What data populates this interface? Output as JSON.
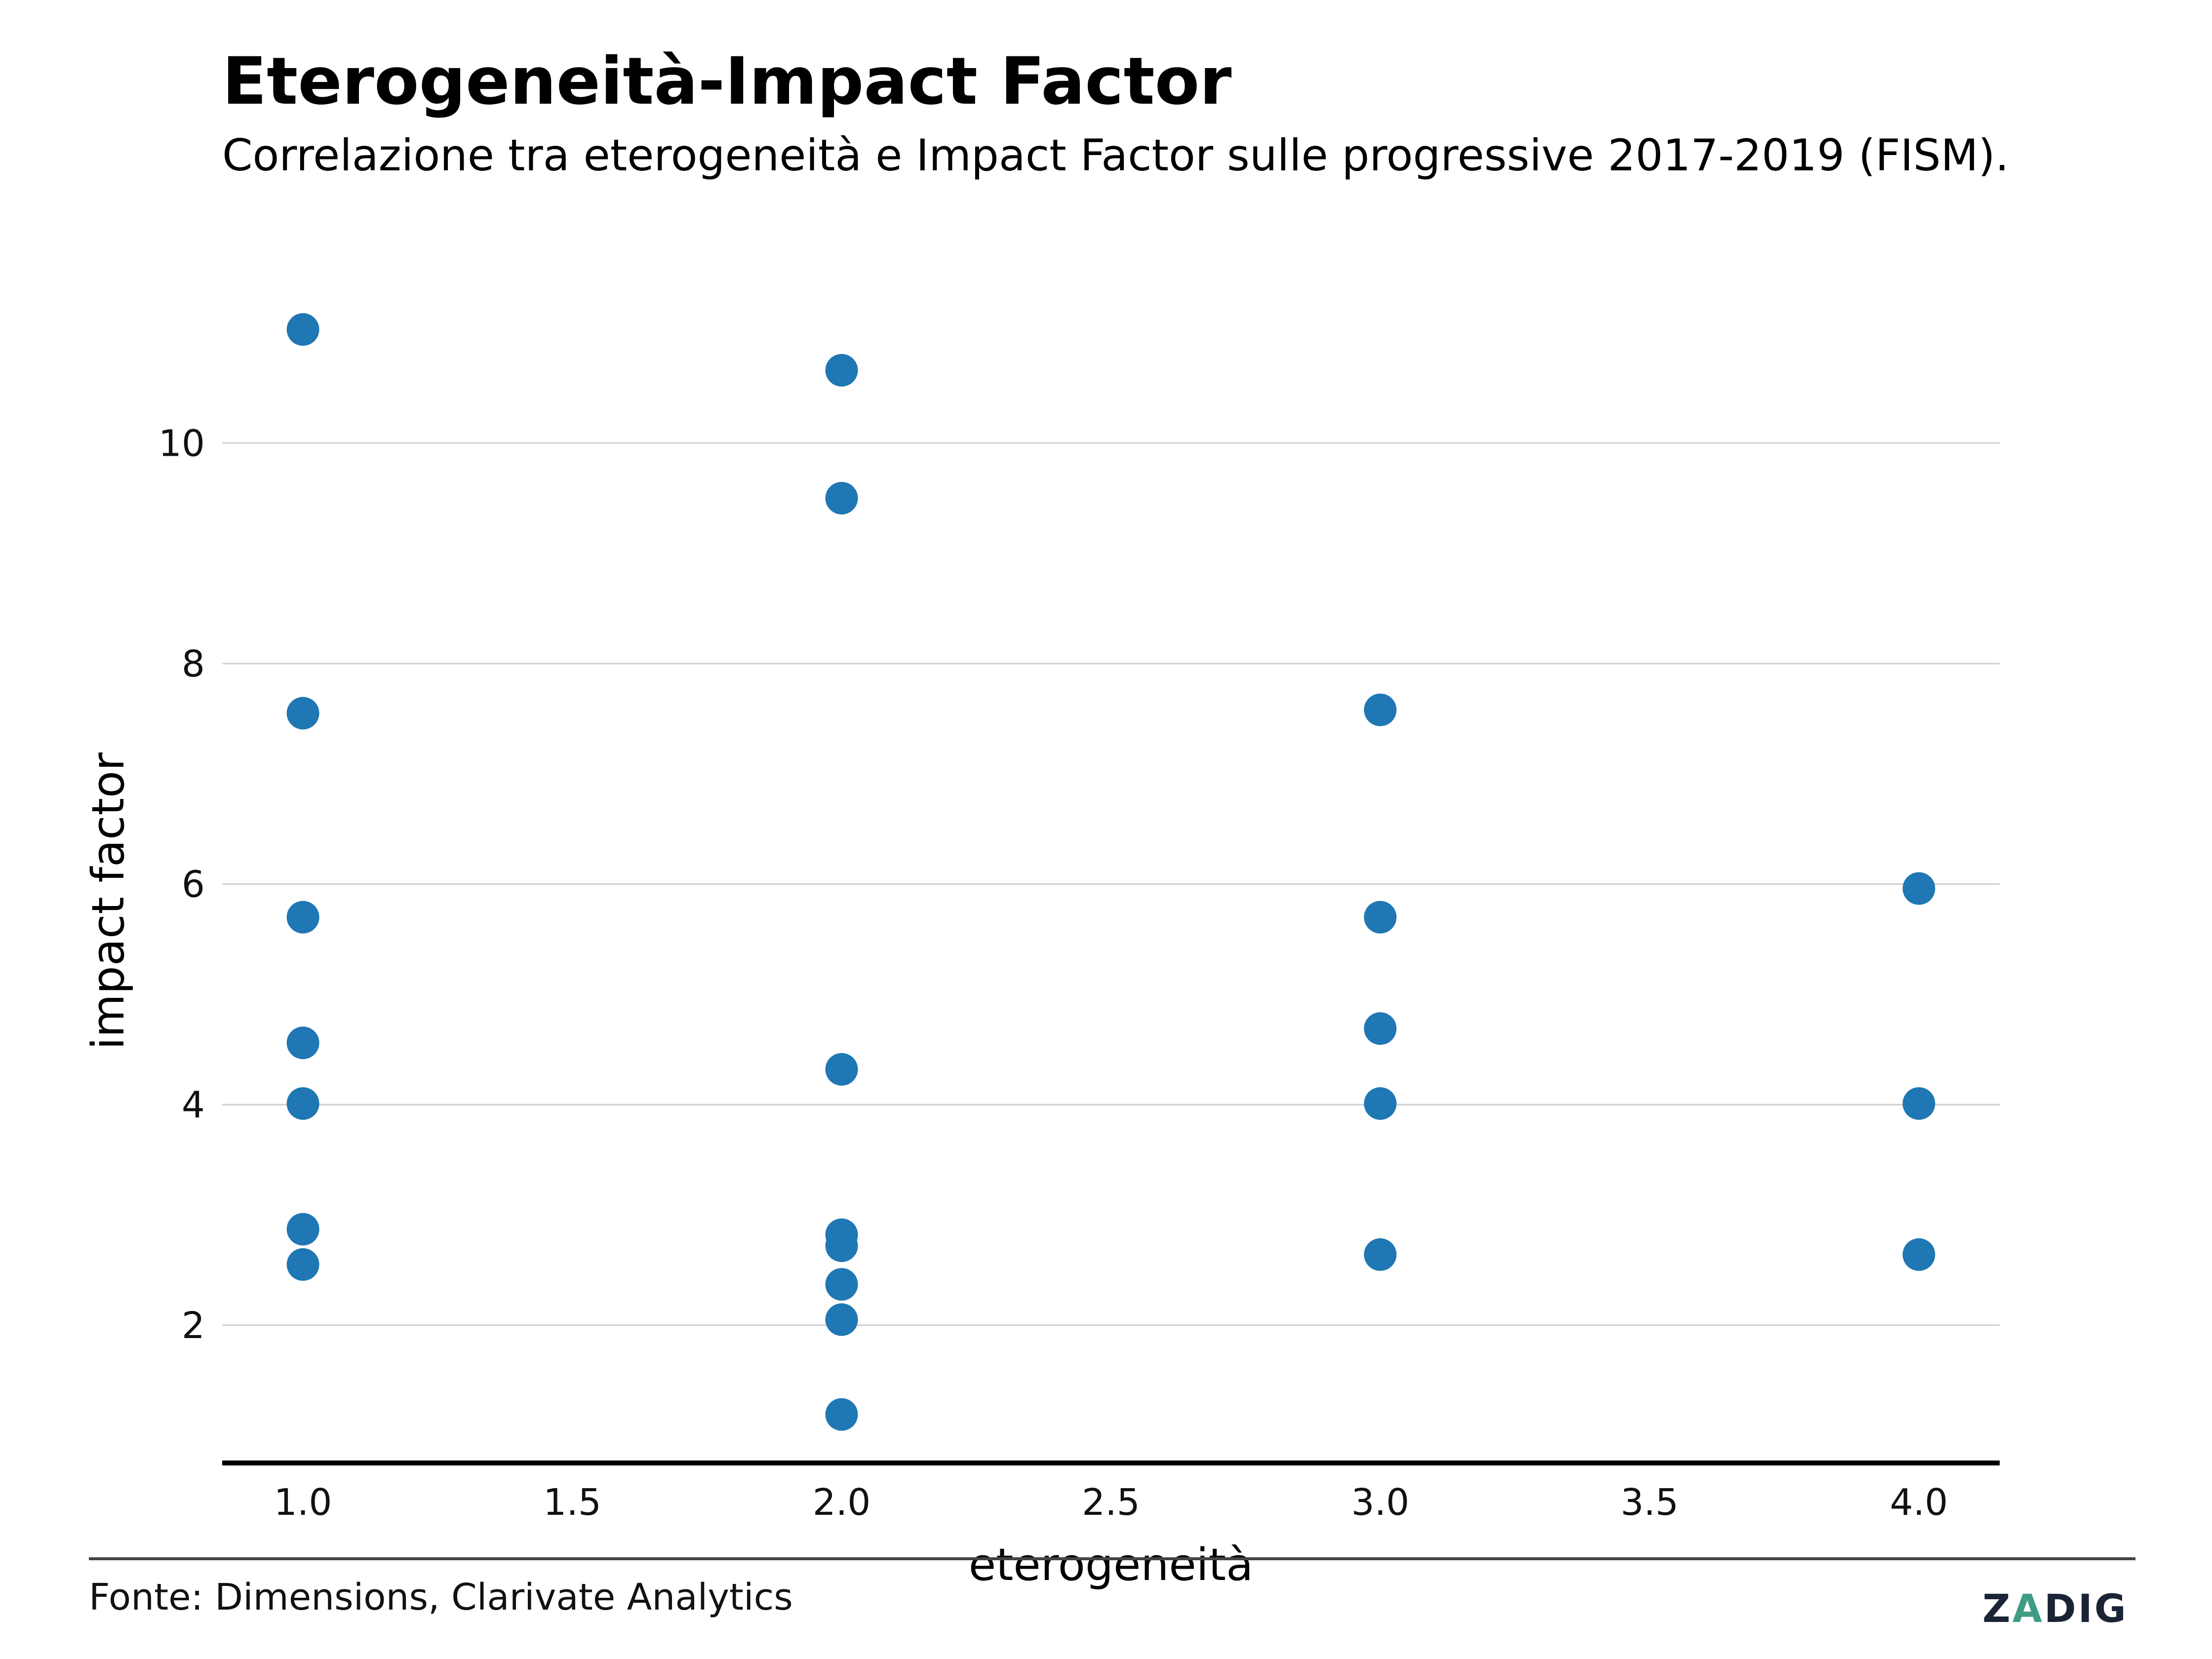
{
  "header": {
    "title": "Eterogeneità-Impact Factor",
    "subtitle": "Correlazione tra eterogeneità e Impact Factor sulle progressive 2017-2019 (FISM)."
  },
  "footer": {
    "source": "Fonte: Dimensions, Clarivate Analytics",
    "logo_text": "ZADIG",
    "logo_accent": "#3f9c84"
  },
  "chart_data": {
    "type": "scatter",
    "title": "Eterogeneità-Impact Factor",
    "subtitle": "Correlazione tra eterogeneità e Impact Factor sulle progressive 2017-2019 (FISM).",
    "xlabel": "eterogeneità",
    "ylabel": "impact factor",
    "xlim": [
      0.85,
      4.15
    ],
    "ylim": [
      0.75,
      11.6
    ],
    "x_ticks": [
      1.0,
      1.5,
      2.0,
      2.5,
      3.0,
      3.5,
      4.0
    ],
    "x_tick_labels": [
      "1.0",
      "1.5",
      "2.0",
      "2.5",
      "3.0",
      "3.5",
      "4.0"
    ],
    "y_ticks": [
      2,
      4,
      6,
      8,
      10
    ],
    "y_tick_labels": [
      "2",
      "4",
      "6",
      "8",
      "10"
    ],
    "grid": "horizontal",
    "marker_color": "#1f77b4",
    "points": [
      {
        "x": 1,
        "y": 11.03
      },
      {
        "x": 1,
        "y": 7.55
      },
      {
        "x": 1,
        "y": 5.7
      },
      {
        "x": 1,
        "y": 4.56
      },
      {
        "x": 1,
        "y": 4.01
      },
      {
        "x": 1,
        "y": 2.87
      },
      {
        "x": 1,
        "y": 2.55
      },
      {
        "x": 2,
        "y": 10.66
      },
      {
        "x": 2,
        "y": 9.5
      },
      {
        "x": 2,
        "y": 4.32
      },
      {
        "x": 2,
        "y": 2.82
      },
      {
        "x": 2,
        "y": 2.72
      },
      {
        "x": 2,
        "y": 2.37
      },
      {
        "x": 2,
        "y": 2.05
      },
      {
        "x": 2,
        "y": 1.19
      },
      {
        "x": 3,
        "y": 7.58
      },
      {
        "x": 3,
        "y": 5.7
      },
      {
        "x": 3,
        "y": 4.69
      },
      {
        "x": 3,
        "y": 4.01
      },
      {
        "x": 3,
        "y": 2.64
      },
      {
        "x": 4,
        "y": 5.96
      },
      {
        "x": 4,
        "y": 4.01
      },
      {
        "x": 4,
        "y": 2.64
      }
    ]
  }
}
